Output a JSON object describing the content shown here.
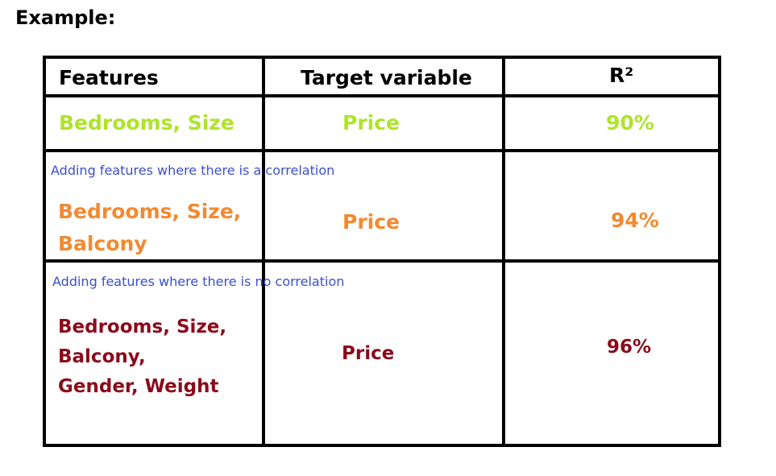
{
  "title": "Example:",
  "table": {
    "headers": {
      "features": "Features",
      "target": "Target variable",
      "r2": "R²"
    },
    "rows": [
      {
        "features_lines": [
          "Bedrooms, Size"
        ],
        "target": "Price",
        "r2": "90%",
        "color": "#aee42a"
      },
      {
        "note": "Adding features where there is a correlation",
        "features_lines": [
          "Bedrooms, Size,",
          "Balcony"
        ],
        "target": "Price",
        "r2": "94%",
        "color": "#f28a30"
      },
      {
        "note": "Adding features where there is no correlation",
        "features_lines": [
          "Bedrooms, Size,",
          "Balcony,",
          "Gender, Weight"
        ],
        "target": "Price",
        "r2": "96%",
        "color": "#8b0a1a"
      }
    ]
  },
  "note_color": "#3b4fd0"
}
